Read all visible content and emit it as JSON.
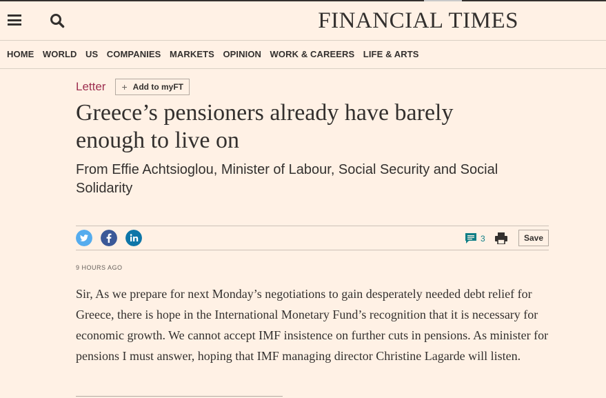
{
  "site": {
    "logo": "FINANCIAL TIMES"
  },
  "nav": {
    "items": [
      "HOME",
      "WORLD",
      "US",
      "COMPANIES",
      "MARKETS",
      "OPINION",
      "WORK & CAREERS",
      "LIFE & ARTS"
    ]
  },
  "article": {
    "genre": "Letter",
    "myft_label": "Add to myFT",
    "headline": "Greece’s pensioners already have barely enough to live on",
    "standfirst": "From Effie Achtsioglou, Minister of Labour, Social Security and Social Solidarity",
    "comment_count": "3",
    "save_label": "Save",
    "timestamp": "9 HOURS AGO",
    "body": "Sir, As we prepare for next Monday’s negotiations to gain desperately needed debt relief for Greece, there is hope in the International Monetary Fund’s recognition that it is necessary for economic growth. We cannot accept IMF insistence on further cuts in pensions. As minister for pensions I must answer, hoping that IMF managing director Christine Lagarde will listen."
  },
  "colors": {
    "background": "#fff1e5",
    "text": "#33302e",
    "genre_accent": "#9e2f50",
    "comments_accent": "#0f7e86",
    "twitter": "#55acee",
    "facebook": "#3b5998",
    "linkedin": "#0e76a8"
  },
  "icons": [
    "menu-icon",
    "search-icon",
    "twitter-icon",
    "facebook-icon",
    "linkedin-icon",
    "comments-icon",
    "print-icon",
    "plus-icon"
  ]
}
